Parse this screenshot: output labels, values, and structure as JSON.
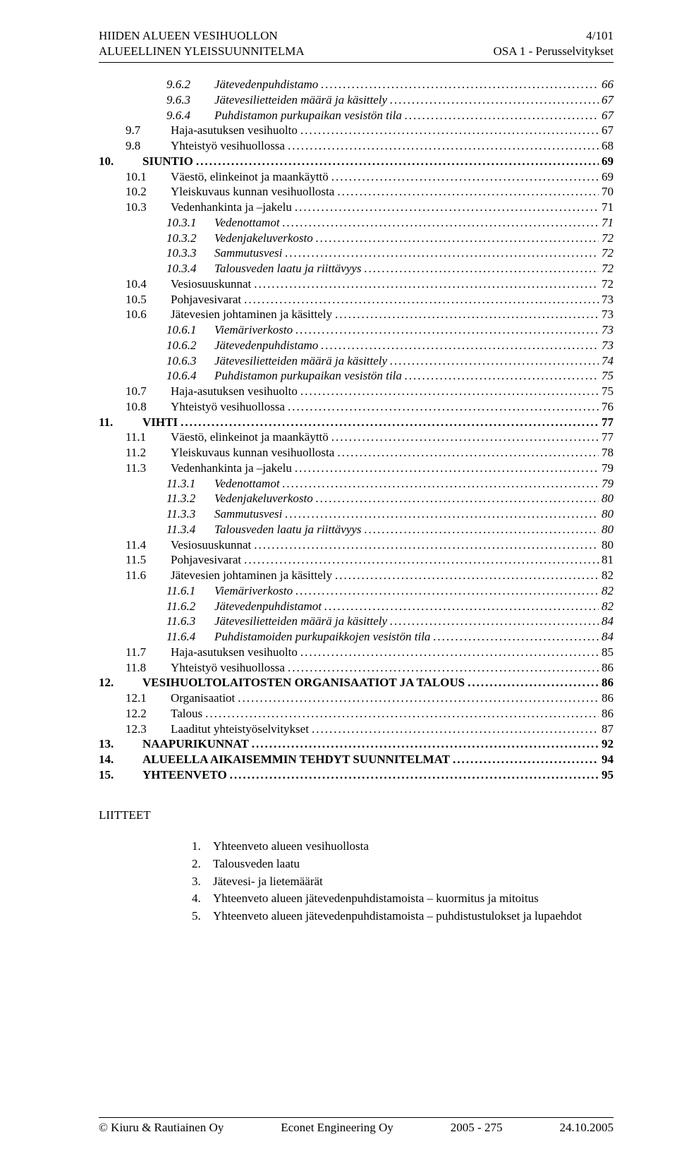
{
  "header": {
    "left_line1": "HIIDEN ALUEEN VESIHUOLLON",
    "left_line2": "ALUEELLINEN YLEISSUUNNITELMA",
    "right_line1": "4/101",
    "right_line2": "OSA 1 - Perusselvitykset"
  },
  "toc": [
    {
      "indent": 2,
      "num": "9.6.2",
      "label": "Jätevedenpuhdistamo",
      "page": "66",
      "italic": true
    },
    {
      "indent": 2,
      "num": "9.6.3",
      "label": "Jätevesilietteiden määrä ja käsittely",
      "page": "67",
      "italic": true
    },
    {
      "indent": 2,
      "num": "9.6.4",
      "label": "Puhdistamon purkupaikan vesistön tila",
      "page": "67",
      "italic": true
    },
    {
      "indent": 1,
      "num": "9.7",
      "label": "Haja-asutuksen vesihuolto",
      "page": "67"
    },
    {
      "indent": 1,
      "num": "9.8",
      "label": "Yhteistyö vesihuollossa",
      "page": "68"
    },
    {
      "indent": 0,
      "num": "10.",
      "label": "SIUNTIO",
      "page": "69",
      "bold": true
    },
    {
      "indent": 1,
      "num": "10.1",
      "label": "Väestö, elinkeinot ja maankäyttö",
      "page": "69"
    },
    {
      "indent": 1,
      "num": "10.2",
      "label": "Yleiskuvaus kunnan vesihuollosta",
      "page": "70"
    },
    {
      "indent": 1,
      "num": "10.3",
      "label": "Vedenhankinta ja –jakelu",
      "page": "71"
    },
    {
      "indent": 2,
      "num": "10.3.1",
      "label": "Vedenottamot",
      "page": "71",
      "italic": true
    },
    {
      "indent": 2,
      "num": "10.3.2",
      "label": "Vedenjakeluverkosto",
      "page": "72",
      "italic": true
    },
    {
      "indent": 2,
      "num": "10.3.3",
      "label": "Sammutusvesi",
      "page": "72",
      "italic": true
    },
    {
      "indent": 2,
      "num": "10.3.4",
      "label": "Talousveden laatu ja riittävyys",
      "page": "72",
      "italic": true
    },
    {
      "indent": 1,
      "num": "10.4",
      "label": "Vesiosuuskunnat",
      "page": "72"
    },
    {
      "indent": 1,
      "num": "10.5",
      "label": "Pohjavesivarat",
      "page": "73"
    },
    {
      "indent": 1,
      "num": "10.6",
      "label": "Jätevesien johtaminen ja käsittely",
      "page": "73"
    },
    {
      "indent": 2,
      "num": "10.6.1",
      "label": "Viemäriverkosto",
      "page": "73",
      "italic": true
    },
    {
      "indent": 2,
      "num": "10.6.2",
      "label": "Jätevedenpuhdistamo",
      "page": "73",
      "italic": true
    },
    {
      "indent": 2,
      "num": "10.6.3",
      "label": "Jätevesilietteiden määrä ja käsittely",
      "page": "74",
      "italic": true
    },
    {
      "indent": 2,
      "num": "10.6.4",
      "label": "Puhdistamon purkupaikan vesistön tila",
      "page": "75",
      "italic": true
    },
    {
      "indent": 1,
      "num": "10.7",
      "label": "Haja-asutuksen vesihuolto",
      "page": "75"
    },
    {
      "indent": 1,
      "num": "10.8",
      "label": "Yhteistyö vesihuollossa",
      "page": "76"
    },
    {
      "indent": 0,
      "num": "11.",
      "label": "VIHTI",
      "page": "77",
      "bold": true
    },
    {
      "indent": 1,
      "num": "11.1",
      "label": "Väestö, elinkeinot ja maankäyttö",
      "page": "77"
    },
    {
      "indent": 1,
      "num": "11.2",
      "label": "Yleiskuvaus kunnan vesihuollosta",
      "page": "78"
    },
    {
      "indent": 1,
      "num": "11.3",
      "label": "Vedenhankinta ja –jakelu",
      "page": "79"
    },
    {
      "indent": 2,
      "num": "11.3.1",
      "label": "Vedenottamot",
      "page": "79",
      "italic": true
    },
    {
      "indent": 2,
      "num": "11.3.2",
      "label": "Vedenjakeluverkosto",
      "page": "80",
      "italic": true
    },
    {
      "indent": 2,
      "num": "11.3.3",
      "label": "Sammutusvesi",
      "page": "80",
      "italic": true
    },
    {
      "indent": 2,
      "num": "11.3.4",
      "label": "Talousveden laatu ja riittävyys",
      "page": "80",
      "italic": true
    },
    {
      "indent": 1,
      "num": "11.4",
      "label": "Vesiosuuskunnat",
      "page": "80"
    },
    {
      "indent": 1,
      "num": "11.5",
      "label": "Pohjavesivarat",
      "page": "81"
    },
    {
      "indent": 1,
      "num": "11.6",
      "label": "Jätevesien johtaminen ja käsittely",
      "page": "82"
    },
    {
      "indent": 2,
      "num": "11.6.1",
      "label": "Viemäriverkosto",
      "page": "82",
      "italic": true
    },
    {
      "indent": 2,
      "num": "11.6.2",
      "label": "Jätevedenpuhdistamot",
      "page": "82",
      "italic": true
    },
    {
      "indent": 2,
      "num": "11.6.3",
      "label": "Jätevesilietteiden määrä ja käsittely",
      "page": "84",
      "italic": true
    },
    {
      "indent": 2,
      "num": "11.6.4",
      "label": "Puhdistamoiden purkupaikkojen vesistön tila",
      "page": "84",
      "italic": true
    },
    {
      "indent": 1,
      "num": "11.7",
      "label": "Haja-asutuksen vesihuolto",
      "page": "85"
    },
    {
      "indent": 1,
      "num": "11.8",
      "label": "Yhteistyö vesihuollossa",
      "page": "86"
    },
    {
      "indent": 0,
      "num": "12.",
      "label": "VESIHUOLTOLAITOSTEN ORGANISAATIOT JA TALOUS",
      "page": "86",
      "bold": true
    },
    {
      "indent": 1,
      "num": "12.1",
      "label": "Organisaatiot",
      "page": "86"
    },
    {
      "indent": 1,
      "num": "12.2",
      "label": "Talous",
      "page": "86"
    },
    {
      "indent": 1,
      "num": "12.3",
      "label": "Laaditut yhteistyöselvitykset",
      "page": "87"
    },
    {
      "indent": 0,
      "num": "13.",
      "label": "NAAPURIKUNNAT",
      "page": "92",
      "bold": true
    },
    {
      "indent": 0,
      "num": "14.",
      "label": "ALUEELLA AIKAISEMMIN TEHDYT SUUNNITELMAT",
      "page": "94",
      "bold": true
    },
    {
      "indent": 0,
      "num": "15.",
      "label": "YHTEENVETO",
      "page": "95",
      "bold": true
    }
  ],
  "appendix": {
    "title": "LIITTEET",
    "items": [
      {
        "num": "1.",
        "text": "Yhteenveto alueen vesihuollosta"
      },
      {
        "num": "2.",
        "text": "Talousveden laatu"
      },
      {
        "num": "3.",
        "text": "Jätevesi- ja lietemäärät"
      },
      {
        "num": "4.",
        "text": "Yhteenveto alueen jätevedenpuhdistamoista – kuormitus ja mitoitus"
      },
      {
        "num": "5.",
        "text": "Yhteenveto alueen jätevedenpuhdistamoista – puhdistustulokset ja lupaehdot"
      }
    ]
  },
  "footer": {
    "left": "© Kiuru & Rautiainen Oy",
    "mid": "Econet Engineering Oy",
    "proj": "2005 - 275",
    "date": "24.10.2005"
  }
}
